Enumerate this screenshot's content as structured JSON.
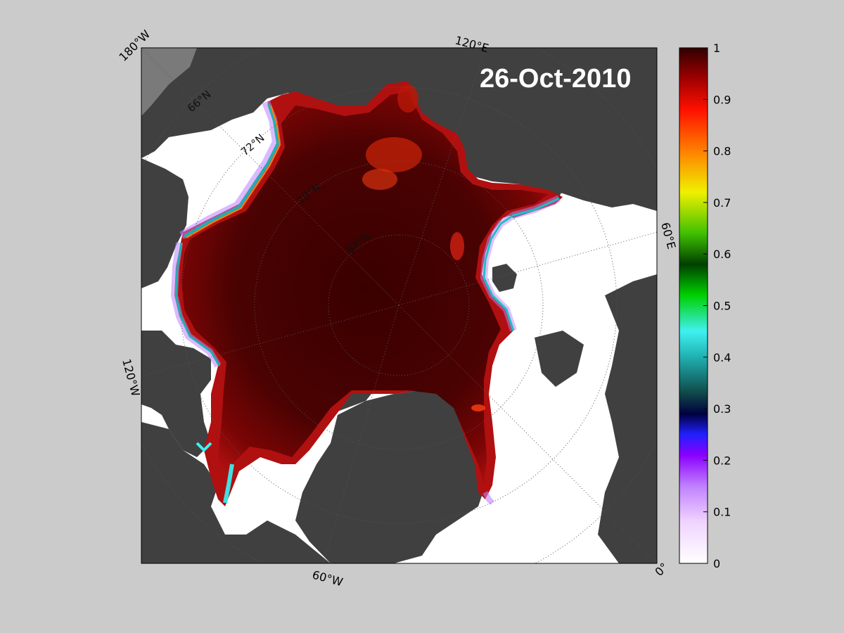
{
  "title": "26-Oct-2010",
  "longitude_labels": {
    "lon_180w": "180°W",
    "lon_120e": "120°E",
    "lon_60e": "60°E",
    "lon_120w": "120°W",
    "lon_60w": "60°W",
    "lon_0": "0°"
  },
  "latitude_labels": {
    "lat_66n": "66°N",
    "lat_72n": "72°N",
    "lat_78n": "78°N",
    "lat_84n": "84°N"
  },
  "colorbar": {
    "ticks": [
      "0",
      "0.1",
      "0.2",
      "0.3",
      "0.4",
      "0.5",
      "0.6",
      "0.7",
      "0.8",
      "0.9",
      "1"
    ],
    "range": [
      0,
      1
    ]
  },
  "colors": {
    "background": "#cbcbcb",
    "land": "#404040",
    "open_water": "#ffffff",
    "ice_high": "#3a0000",
    "ice_mid": "#a00000",
    "outline": "#000000"
  }
}
